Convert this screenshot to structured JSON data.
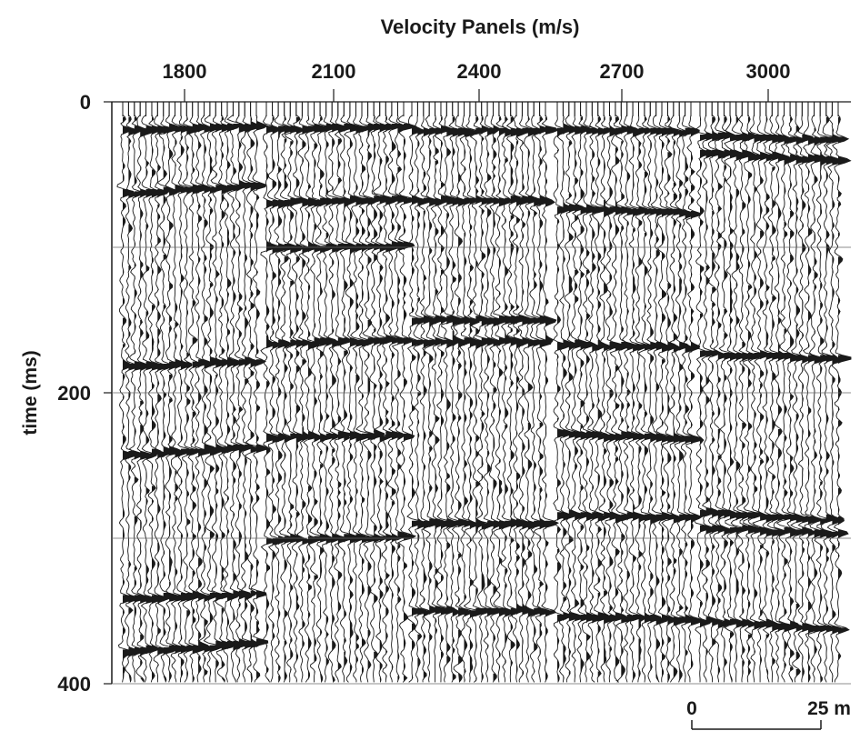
{
  "chart_data": {
    "type": "seismic-wiggle-panels",
    "title": "Velocity Panels (m/s)",
    "xlabel": "",
    "ylabel": "time (ms)",
    "categories": [
      "1800",
      "2100",
      "2400",
      "2700",
      "3000"
    ],
    "panel_velocities_m_per_s": [
      1800,
      2100,
      2400,
      2700,
      3000
    ],
    "y_ticks": [
      0,
      200,
      400
    ],
    "y_gridlines_ms": [
      0,
      100,
      200,
      300,
      400
    ],
    "ylim": [
      0,
      400
    ],
    "y_inverted": true,
    "grid": true,
    "traces_per_panel": 24,
    "scale_bar": {
      "start_label": "0",
      "end_label": "25 m",
      "length_m": 25
    },
    "strong_events_ms": [
      [
        18,
        60,
        180,
        240,
        340,
        375
      ],
      [
        18,
        68,
        100,
        165,
        230,
        300
      ],
      [
        20,
        68,
        150,
        165,
        290,
        350
      ],
      [
        20,
        75,
        168,
        230,
        285,
        355
      ],
      [
        25,
        38,
        175,
        285,
        295,
        360
      ]
    ]
  },
  "colors": {
    "ink": "#1a1a1a",
    "paper": "#ffffff",
    "grid": "#666666"
  }
}
